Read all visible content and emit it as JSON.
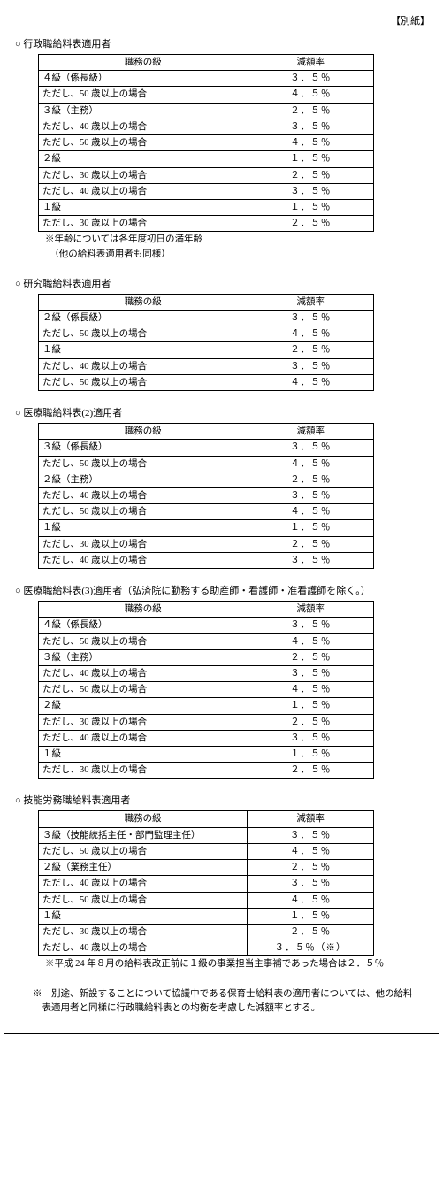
{
  "appendix": "【別紙】",
  "headers": {
    "grade": "職務の級",
    "rate": "減額率"
  },
  "sections": [
    {
      "title": "○ 行政職給料表適用者",
      "rows": [
        {
          "label": "４級（係長級）",
          "sub": false,
          "rate": "３．５％"
        },
        {
          "label": "ただし、50 歳以上の場合",
          "sub": true,
          "rate": "４．５％"
        },
        {
          "label": "３級（主務）",
          "sub": false,
          "rate": "２．５％"
        },
        {
          "label": "ただし、40 歳以上の場合",
          "sub": true,
          "rate": "３．５％"
        },
        {
          "label": "ただし、50 歳以上の場合",
          "sub": true,
          "rate": "４．５％"
        },
        {
          "label": "２級",
          "sub": false,
          "rate": "１．５％"
        },
        {
          "label": "ただし、30 歳以上の場合",
          "sub": true,
          "rate": "２．５％"
        },
        {
          "label": "ただし、40 歳以上の場合",
          "sub": true,
          "rate": "３．５％"
        },
        {
          "label": "１級",
          "sub": false,
          "rate": "１．５％"
        },
        {
          "label": "ただし、30 歳以上の場合",
          "sub": true,
          "rate": "２．５％"
        }
      ],
      "notes": [
        "※年齢については各年度初日の満年齢",
        "　（他の給料表適用者も同様）"
      ]
    },
    {
      "title": "○ 研究職給料表適用者",
      "rows": [
        {
          "label": "２級（係長級）",
          "sub": false,
          "rate": "３．５％"
        },
        {
          "label": "ただし、50 歳以上の場合",
          "sub": true,
          "rate": "４．５％"
        },
        {
          "label": "１級",
          "sub": false,
          "rate": "２．５％"
        },
        {
          "label": "ただし、40 歳以上の場合",
          "sub": true,
          "rate": "３．５％"
        },
        {
          "label": "ただし、50 歳以上の場合",
          "sub": true,
          "rate": "４．５％"
        }
      ],
      "notes": []
    },
    {
      "title": "○ 医療職給料表(2)適用者",
      "rows": [
        {
          "label": "３級（係長級）",
          "sub": false,
          "rate": "３．５％"
        },
        {
          "label": "ただし、50 歳以上の場合",
          "sub": true,
          "rate": "４．５％"
        },
        {
          "label": "２級（主務）",
          "sub": false,
          "rate": "２．５％"
        },
        {
          "label": "ただし、40 歳以上の場合",
          "sub": true,
          "rate": "３．５％"
        },
        {
          "label": "ただし、50 歳以上の場合",
          "sub": true,
          "rate": "４．５％"
        },
        {
          "label": "１級",
          "sub": false,
          "rate": "１．５％"
        },
        {
          "label": "ただし、30 歳以上の場合",
          "sub": true,
          "rate": "２．５％"
        },
        {
          "label": "ただし、40 歳以上の場合",
          "sub": true,
          "rate": "３．５％"
        }
      ],
      "notes": []
    },
    {
      "title": "○ 医療職給料表(3)適用者（弘済院に勤務する助産師・看護師・准看護師を除く。）",
      "rows": [
        {
          "label": "４級（係長級）",
          "sub": false,
          "rate": "３．５％"
        },
        {
          "label": "ただし、50 歳以上の場合",
          "sub": true,
          "rate": "４．５％"
        },
        {
          "label": "３級（主務）",
          "sub": false,
          "rate": "２．５％"
        },
        {
          "label": "ただし、40 歳以上の場合",
          "sub": true,
          "rate": "３．５％"
        },
        {
          "label": "ただし、50 歳以上の場合",
          "sub": true,
          "rate": "４．５％"
        },
        {
          "label": "２級",
          "sub": false,
          "rate": "１．５％"
        },
        {
          "label": "ただし、30 歳以上の場合",
          "sub": true,
          "rate": "２．５％"
        },
        {
          "label": "ただし、40 歳以上の場合",
          "sub": true,
          "rate": "３．５％"
        },
        {
          "label": "１級",
          "sub": false,
          "rate": "１．５％"
        },
        {
          "label": "ただし、30 歳以上の場合",
          "sub": true,
          "rate": "２．５％"
        }
      ],
      "notes": []
    },
    {
      "title": "○ 技能労務職給料表適用者",
      "rows": [
        {
          "label": "３級（技能統括主任・部門監理主任）",
          "sub": false,
          "rate": "３．５％"
        },
        {
          "label": "ただし、50 歳以上の場合",
          "sub": true,
          "rate": "４．５％"
        },
        {
          "label": "２級（業務主任）",
          "sub": false,
          "rate": "２．５％"
        },
        {
          "label": "ただし、40 歳以上の場合",
          "sub": true,
          "rate": "３．５％"
        },
        {
          "label": "ただし、50 歳以上の場合",
          "sub": true,
          "rate": "４．５％"
        },
        {
          "label": "１級",
          "sub": false,
          "rate": "１．５％"
        },
        {
          "label": "ただし、30 歳以上の場合",
          "sub": true,
          "rate": "２．５％"
        },
        {
          "label": "ただし、40 歳以上の場合",
          "sub": true,
          "rate": "３．５％（※）"
        }
      ],
      "notes": [
        "※平成 24 年８月の給料表改正前に１級の事業担当主事補であった場合は２．５％"
      ]
    }
  ],
  "footnote": "※　別途、新設することについて協議中である保育士給料表の適用者については、他の給料表適用者と同様に行政職給料表との均衡を考慮した減額率とする。"
}
